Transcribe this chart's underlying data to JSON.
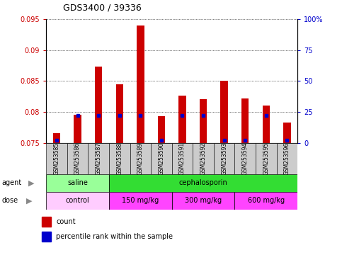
{
  "title": "GDS3400 / 39336",
  "samples": [
    "GSM253585",
    "GSM253586",
    "GSM253587",
    "GSM253588",
    "GSM253589",
    "GSM253590",
    "GSM253591",
    "GSM253592",
    "GSM253593",
    "GSM253594",
    "GSM253595",
    "GSM253596"
  ],
  "counts": [
    0.0765,
    0.0795,
    0.0873,
    0.0845,
    0.094,
    0.0793,
    0.0826,
    0.082,
    0.085,
    0.0822,
    0.081,
    0.0783
  ],
  "percentiles": [
    2,
    22,
    22,
    22,
    22,
    2,
    22,
    22,
    2,
    2,
    22,
    2
  ],
  "ylim_left": [
    0.075,
    0.095
  ],
  "ylim_right": [
    0,
    100
  ],
  "yticks_left": [
    0.075,
    0.08,
    0.085,
    0.09,
    0.095
  ],
  "yticks_right": [
    0,
    25,
    50,
    75,
    100
  ],
  "ytick_labels_left": [
    "0.075",
    "0.08",
    "0.085",
    "0.09",
    "0.095"
  ],
  "ytick_labels_right": [
    "0",
    "25",
    "50",
    "75",
    "100%"
  ],
  "bar_color": "#cc0000",
  "dot_color": "#0000cc",
  "saline_color": "#99ff99",
  "cephalosporin_color": "#33dd33",
  "control_color": "#ffccff",
  "dose_color": "#ff44ff",
  "xtick_bg": "#cccccc",
  "legend_count_label": "count",
  "legend_percentile_label": "percentile rank within the sample",
  "grid_color": "#000000",
  "background_color": "#ffffff",
  "tick_label_color_left": "#cc0000",
  "tick_label_color_right": "#0000cc"
}
